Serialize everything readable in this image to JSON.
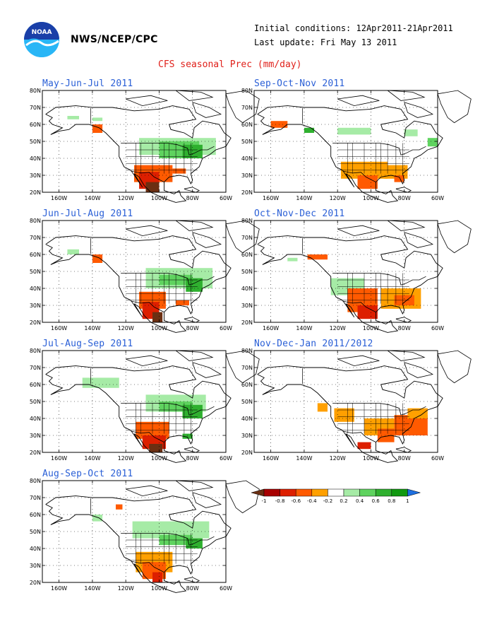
{
  "header": {
    "agency": "NWS/NCEP/CPC",
    "initial_conditions": "Initial conditions: 12Apr2011-21Apr2011",
    "last_update": "Last update: Fri May 13 2011",
    "title": "CFS seasonal Prec (mm/day)"
  },
  "logo": {
    "icon": "noaa-logo-icon",
    "text": "NOAA"
  },
  "axes": {
    "lat_labels": [
      "80N",
      "70N",
      "60N",
      "50N",
      "40N",
      "30N",
      "20N"
    ],
    "lon_labels": [
      "160W",
      "140W",
      "120W",
      "100W",
      "80W",
      "60W"
    ]
  },
  "panels": [
    {
      "title": "May-Jun-Jul 2011"
    },
    {
      "title": "Sep-Oct-Nov 2011"
    },
    {
      "title": "Jun-Jul-Aug 2011"
    },
    {
      "title": "Oct-Nov-Dec 2011"
    },
    {
      "title": "Jul-Aug-Sep 2011"
    },
    {
      "title": "Nov-Dec-Jan 2011/2012"
    },
    {
      "title": "Aug-Sep-Oct 2011"
    }
  ],
  "colorbar": {
    "labels": [
      "-1",
      "-0.8",
      "-0.6",
      "-0.4",
      "-0.2",
      "0.2",
      "0.4",
      "0.6",
      "0.8",
      "1"
    ],
    "colors": [
      "#6b2f12",
      "#a80000",
      "#dd1f00",
      "#ff5a00",
      "#ffa000",
      "#ffffff",
      "#a6eba6",
      "#5fd35f",
      "#2fb02f",
      "#119911",
      "#1e6fe0"
    ]
  },
  "colors": {
    "title": "#e0201a",
    "panel_title": "#2a5fd6",
    "map_line": "#000000"
  }
}
